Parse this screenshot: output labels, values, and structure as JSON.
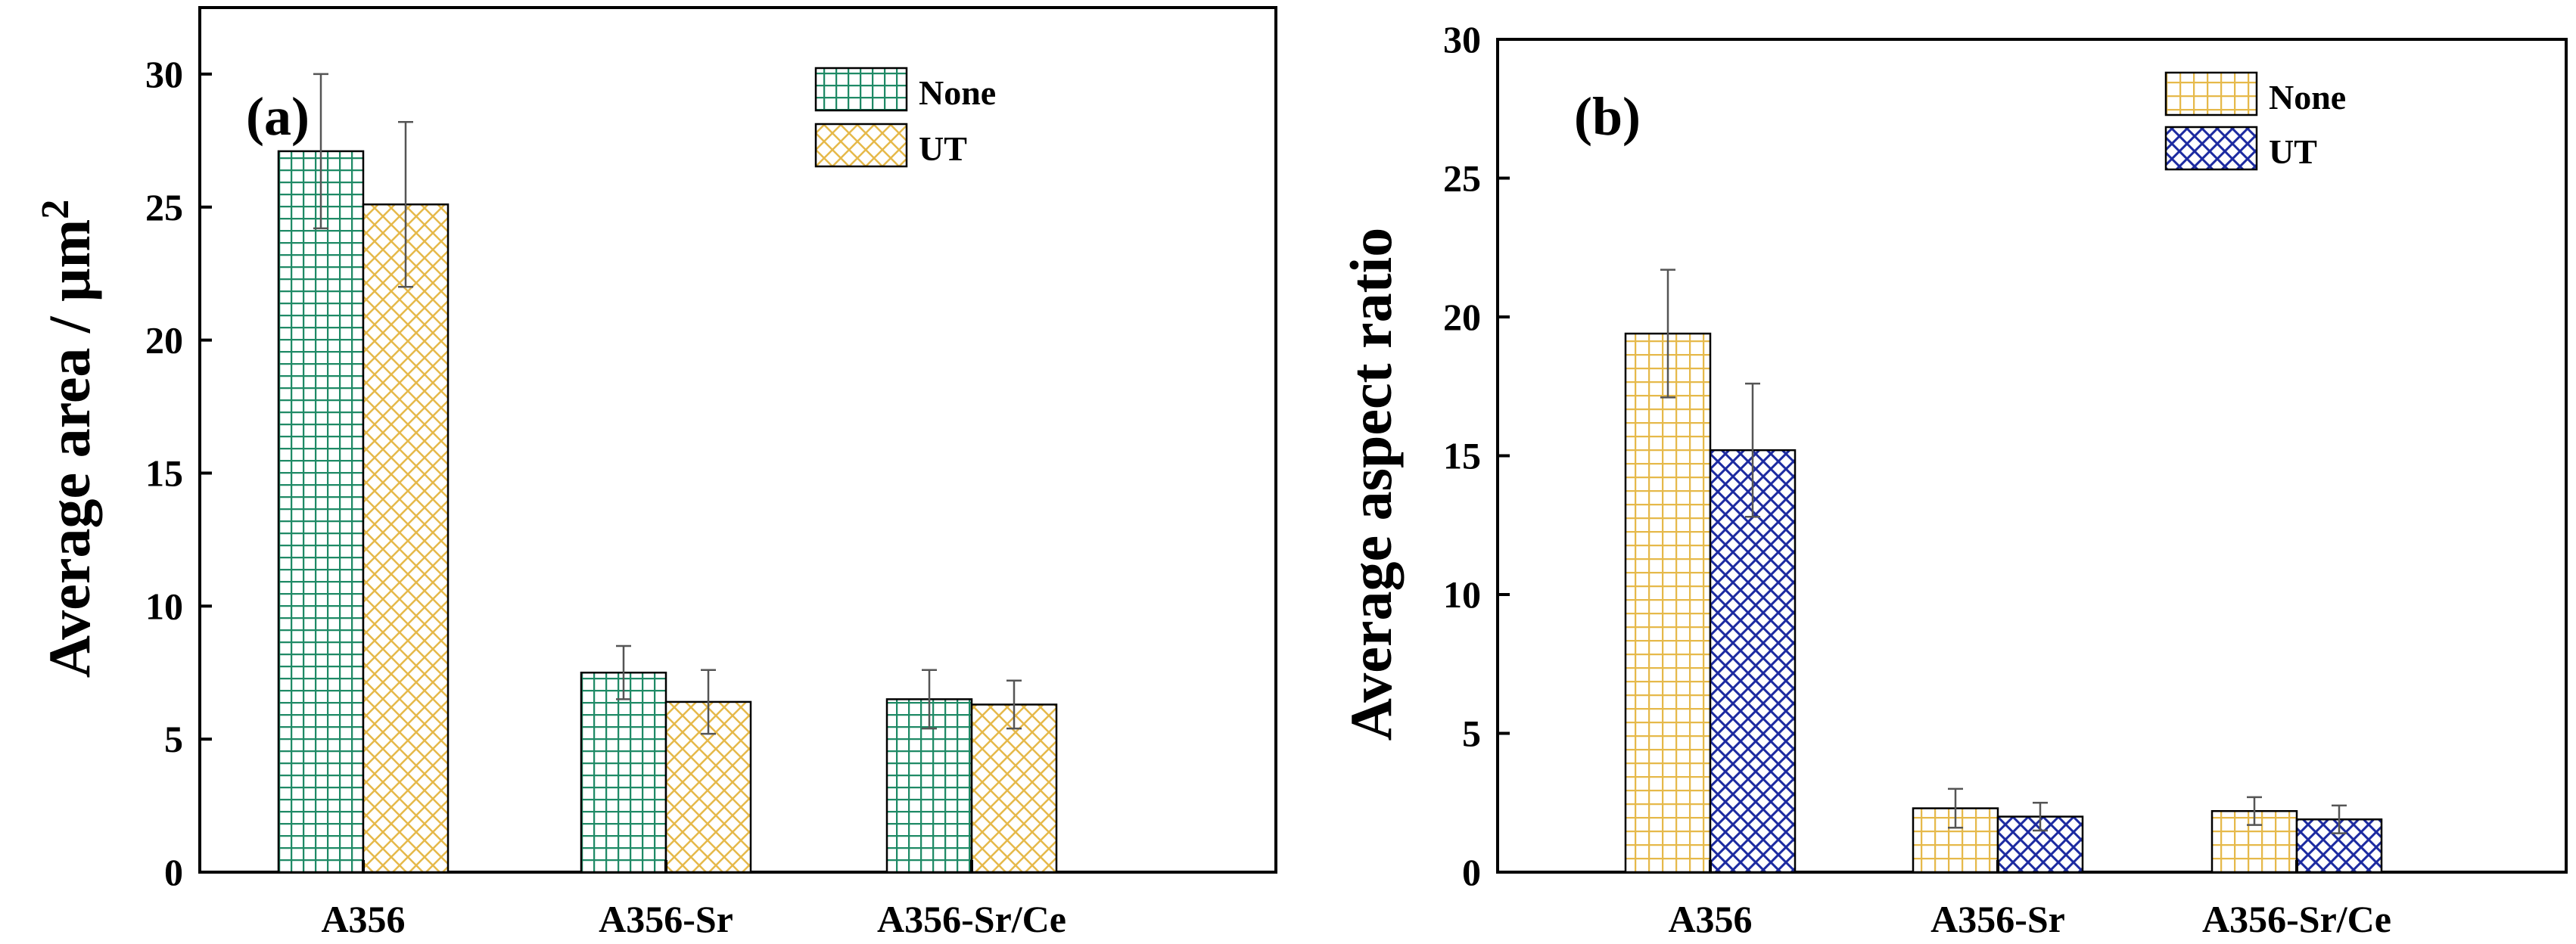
{
  "colors": {
    "green": "#1f8a66",
    "yellow": "#e6b94a",
    "blue": "#1c2aa0",
    "errorbar": "#555555",
    "axis": "#000000"
  },
  "chart_data": [
    {
      "type": "bar",
      "panel_label": "(a)",
      "ylabel": "Average area / μm",
      "ylabel_superscript": "2",
      "categories": [
        "A356",
        "A356-Sr",
        "A356-Sr/Ce"
      ],
      "ylim": [
        0,
        32.5
      ],
      "yticks": [
        0,
        5,
        10,
        15,
        20,
        25,
        30
      ],
      "legend_position": "top-right",
      "series": [
        {
          "name": "None",
          "values": [
            27.1,
            7.5,
            6.5
          ],
          "errors": [
            2.9,
            1.0,
            1.1
          ],
          "color": "#1f8a66",
          "pattern": "grid"
        },
        {
          "name": "UT",
          "values": [
            25.1,
            6.4,
            6.3
          ],
          "errors": [
            3.1,
            1.2,
            0.9
          ],
          "color": "#e6b94a",
          "pattern": "crosshatch"
        }
      ]
    },
    {
      "type": "bar",
      "panel_label": "(b)",
      "ylabel": "Average aspect ratio",
      "ylabel_superscript": "",
      "categories": [
        "A356",
        "A356-Sr",
        "A356-Sr/Ce"
      ],
      "ylim": [
        0,
        30
      ],
      "yticks": [
        0,
        5,
        10,
        15,
        20,
        25,
        30
      ],
      "legend_position": "top-right",
      "series": [
        {
          "name": "None",
          "values": [
            19.4,
            2.3,
            2.2
          ],
          "errors": [
            2.3,
            0.7,
            0.5
          ],
          "color": "#e6b94a",
          "pattern": "grid"
        },
        {
          "name": "UT",
          "values": [
            15.2,
            2.0,
            1.9
          ],
          "errors": [
            2.4,
            0.5,
            0.5
          ],
          "color": "#1c2aa0",
          "pattern": "crosshatch"
        }
      ]
    }
  ]
}
